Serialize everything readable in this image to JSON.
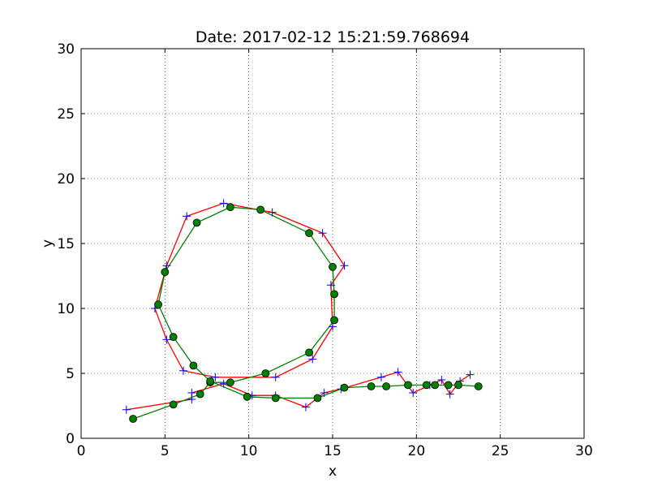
{
  "chart_data": {
    "type": "line",
    "title": "Date: 2017-02-12 15:21:59.768694",
    "xlabel": "x",
    "ylabel": "y",
    "xlim": [
      0,
      30
    ],
    "ylim": [
      0,
      30
    ],
    "xticks": [
      "0",
      "5",
      "10",
      "15",
      "20",
      "25",
      "30"
    ],
    "yticks": [
      "0",
      "5",
      "10",
      "15",
      "20",
      "25",
      "30"
    ],
    "grid": true,
    "series": [
      {
        "style": "red-line-blue-plus",
        "line_color": "#ff0000",
        "marker_color": "#0000ff",
        "marker": "plus",
        "points": [
          [
            2.7,
            2.2
          ],
          [
            6.6,
            3.0
          ],
          [
            6.6,
            3.5
          ],
          [
            8.5,
            4.2
          ],
          [
            10.2,
            3.3
          ],
          [
            11.6,
            3.3
          ],
          [
            13.4,
            2.4
          ],
          [
            14.5,
            3.5
          ],
          [
            15.5,
            3.8
          ],
          [
            17.9,
            4.7
          ],
          [
            18.9,
            5.1
          ],
          [
            19.8,
            3.5
          ],
          [
            20.8,
            4.1
          ],
          [
            21.5,
            4.5
          ],
          [
            22.0,
            3.4
          ],
          [
            22.6,
            4.4
          ],
          [
            23.2,
            4.9
          ]
        ],
        "loop_points": [
          [
            6.1,
            5.2
          ],
          [
            8.0,
            4.7
          ],
          [
            11.6,
            4.7
          ],
          [
            13.8,
            6.1
          ],
          [
            15.0,
            8.6
          ],
          [
            14.9,
            11.8
          ],
          [
            15.7,
            13.3
          ],
          [
            14.4,
            15.8
          ],
          [
            11.4,
            17.4
          ],
          [
            8.5,
            18.1
          ],
          [
            6.3,
            17.1
          ],
          [
            5.1,
            13.3
          ],
          [
            4.4,
            10.0
          ],
          [
            5.1,
            7.6
          ],
          [
            6.1,
            5.2
          ]
        ]
      },
      {
        "style": "green-line-green-dot",
        "line_color": "#008000",
        "marker_color": "#008000",
        "marker": "dot",
        "points": [
          [
            3.1,
            1.5
          ],
          [
            5.5,
            2.6
          ],
          [
            7.1,
            3.4
          ],
          [
            7.7,
            4.3
          ],
          [
            8.9,
            4.3
          ],
          [
            11.0,
            5.0
          ],
          [
            13.6,
            6.6
          ],
          [
            15.1,
            9.1
          ],
          [
            15.1,
            11.1
          ],
          [
            15.0,
            13.2
          ],
          [
            13.6,
            15.8
          ],
          [
            10.7,
            17.6
          ],
          [
            8.9,
            17.8
          ],
          [
            6.9,
            16.6
          ],
          [
            5.0,
            12.8
          ],
          [
            4.6,
            10.3
          ],
          [
            5.5,
            7.8
          ],
          [
            6.7,
            5.6
          ],
          [
            7.7,
            4.4
          ],
          [
            9.9,
            3.2
          ],
          [
            11.6,
            3.1
          ],
          [
            14.1,
            3.1
          ],
          [
            15.7,
            3.9
          ],
          [
            17.3,
            4.0
          ],
          [
            18.2,
            4.0
          ],
          [
            19.5,
            4.1
          ],
          [
            20.6,
            4.1
          ],
          [
            21.1,
            4.1
          ],
          [
            21.9,
            4.1
          ],
          [
            22.5,
            4.1
          ],
          [
            23.7,
            4.0
          ]
        ]
      }
    ]
  }
}
